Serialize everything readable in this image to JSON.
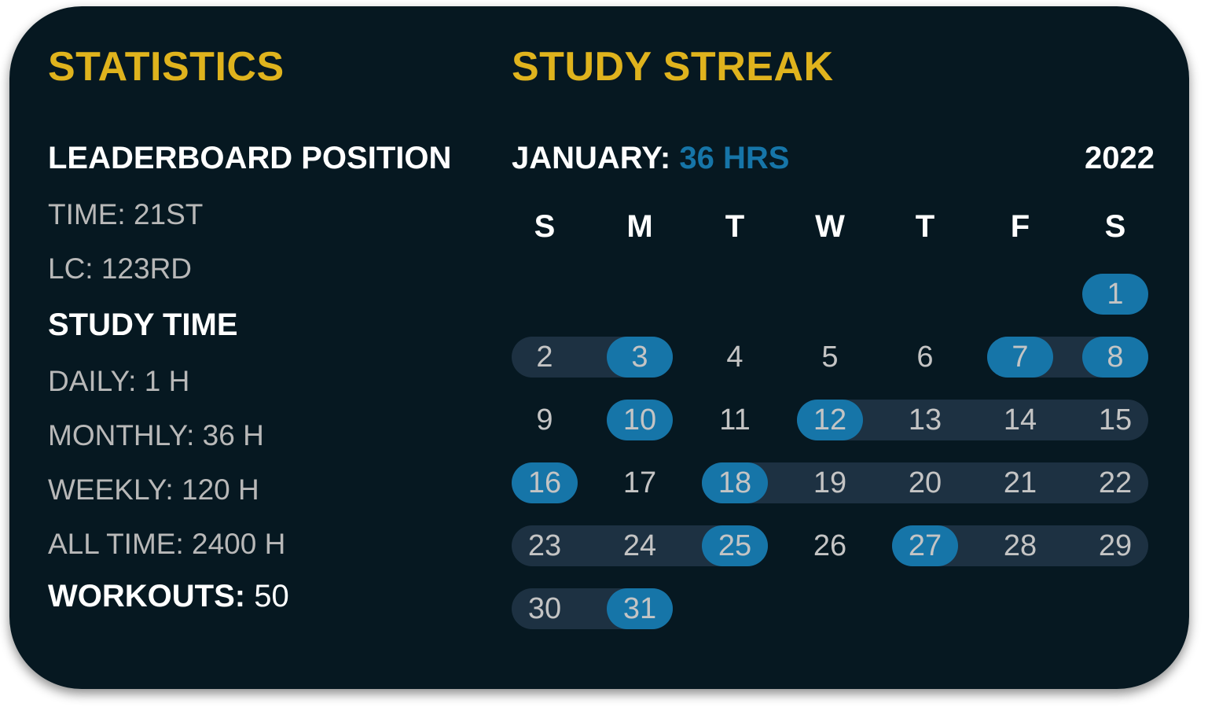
{
  "statistics": {
    "title": "STATISTICS",
    "leaderboard_heading": "LEADERBOARD POSITION",
    "time": "TIME: 21ST",
    "lc": "LC: 123RD",
    "study_time_heading": "STUDY TIME",
    "daily": "DAILY: 1 H",
    "monthly": "MONTHLY: 36 H",
    "weekly": "WEEKLY: 120 H",
    "all_time": "ALL TIME: 2400 H",
    "workouts_label": "WORKOUTS:",
    "workouts_value": "50"
  },
  "streak": {
    "title": "STUDY STREAK",
    "month_label": "JANUARY:",
    "month_hours": "36 HRS",
    "year": "2022",
    "weekdays": [
      "S",
      "M",
      "T",
      "W",
      "T",
      "F",
      "S"
    ],
    "weeks": [
      [
        null,
        null,
        null,
        null,
        null,
        null,
        1
      ],
      [
        2,
        3,
        4,
        5,
        6,
        7,
        8
      ],
      [
        9,
        10,
        11,
        12,
        13,
        14,
        15
      ],
      [
        16,
        17,
        18,
        19,
        20,
        21,
        22
      ],
      [
        23,
        24,
        25,
        26,
        27,
        28,
        29
      ],
      [
        30,
        31,
        null,
        null,
        null,
        null,
        null
      ]
    ],
    "highlighted_days": [
      1,
      3,
      7,
      8,
      10,
      12,
      16,
      18,
      25,
      27,
      31
    ],
    "streak_ranges": [
      [
        2,
        3
      ],
      [
        7,
        8
      ],
      [
        12,
        15
      ],
      [
        18,
        22
      ],
      [
        23,
        25
      ],
      [
        27,
        29
      ],
      [
        30,
        31
      ]
    ],
    "colors": {
      "accent": "#dfb31d",
      "highlight": "#1675a8",
      "streak": "#1d3142",
      "background": "#061821"
    }
  }
}
